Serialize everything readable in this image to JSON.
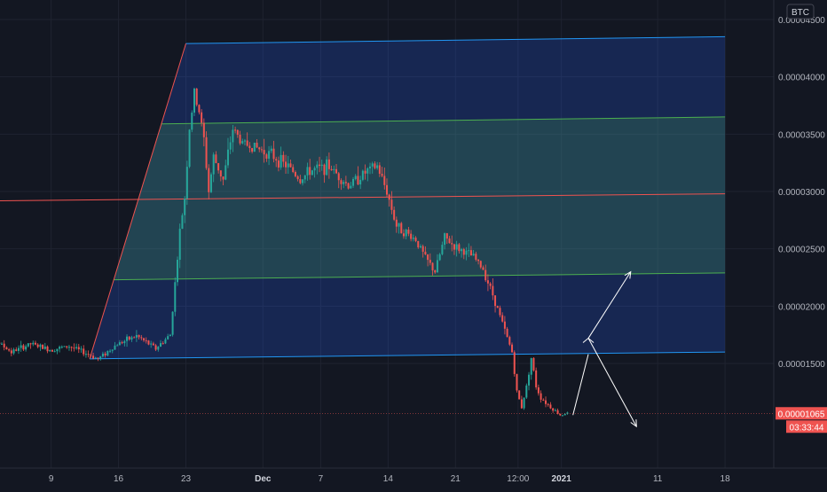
{
  "header": {
    "currency": "BTC"
  },
  "price_tag": {
    "value": "0.00001065",
    "countdown": "03:33:44"
  },
  "colors": {
    "background": "#131722",
    "grid": "#1f2330",
    "text": "#b2b5be",
    "up": "#26a69a",
    "down": "#ef5350",
    "channel_outer": "#2962ff",
    "channel_inner": "#4caf50",
    "channel_mid": "#ef5350",
    "price_label": "#ef5350",
    "arrow": "#ffffff"
  },
  "chart_data": {
    "type": "candlestick",
    "y_axis": {
      "scale": "linear",
      "range": [
        5.5e-06,
        4.45e-05
      ],
      "ticks": [
        "0.00001500",
        "0.00002000",
        "0.00002500",
        "0.00003000",
        "0.00003500",
        "0.00004000",
        "0.00004500"
      ],
      "tick_values": [
        1.5e-05,
        2e-05,
        2.5e-05,
        3e-05,
        3.5e-05,
        4e-05,
        4.5e-05
      ]
    },
    "x_axis": {
      "ticks": [
        "9",
        "16",
        "23",
        "Dec",
        "7",
        "14",
        "21",
        "12:00",
        "2021",
        "11",
        "18"
      ],
      "tick_days": [
        -24,
        -17,
        -10,
        -2,
        4,
        11,
        18,
        24.5,
        29,
        39,
        46
      ],
      "bold": [
        "Dec",
        "2021"
      ]
    },
    "price_path": {
      "description_units": "x = days from Dec 1 2020, y = price in BTC",
      "points": [
        [
          -32,
          1.76e-05
        ],
        [
          -30,
          1.72e-05
        ],
        [
          -28,
          1.6e-05
        ],
        [
          -26,
          1.67e-05
        ],
        [
          -24,
          1.62e-05
        ],
        [
          -22,
          1.65e-05
        ],
        [
          -20,
          1.58e-05
        ],
        [
          -19,
          1.54e-05
        ],
        [
          -17,
          1.67e-05
        ],
        [
          -15,
          1.74e-05
        ],
        [
          -13,
          1.63e-05
        ],
        [
          -11.5,
          1.75e-05
        ],
        [
          -11,
          2.2e-05
        ],
        [
          -10.5,
          2.65e-05
        ],
        [
          -10,
          2.95e-05
        ],
        [
          -9.5,
          3.55e-05
        ],
        [
          -9,
          3.85e-05
        ],
        [
          -8.5,
          3.7e-05
        ],
        [
          -8,
          3.45e-05
        ],
        [
          -7.5,
          3e-05
        ],
        [
          -7,
          3.3e-05
        ],
        [
          -6,
          3.1e-05
        ],
        [
          -5,
          3.55e-05
        ],
        [
          -4,
          3.42e-05
        ],
        [
          -3,
          3.4e-05
        ],
        [
          -1,
          3.32e-05
        ],
        [
          1,
          3.2e-05
        ],
        [
          2,
          3.1e-05
        ],
        [
          3,
          3.18e-05
        ],
        [
          5,
          3.22e-05
        ],
        [
          7,
          3.05e-05
        ],
        [
          9,
          3.18e-05
        ],
        [
          10,
          3.22e-05
        ],
        [
          11,
          3e-05
        ],
        [
          12,
          2.7e-05
        ],
        [
          14,
          2.58e-05
        ],
        [
          15,
          2.42e-05
        ],
        [
          16,
          2.3e-05
        ],
        [
          17,
          2.6e-05
        ],
        [
          18,
          2.52e-05
        ],
        [
          20,
          2.43e-05
        ],
        [
          21,
          2.32e-05
        ],
        [
          22,
          2.1e-05
        ],
        [
          23,
          1.85e-05
        ],
        [
          24,
          1.6e-05
        ],
        [
          24.5,
          1.25e-05
        ],
        [
          25,
          1.12e-05
        ],
        [
          25.5,
          1.3e-05
        ],
        [
          26,
          1.55e-05
        ],
        [
          26.5,
          1.3e-05
        ],
        [
          27,
          1.2e-05
        ],
        [
          28,
          1.12e-05
        ],
        [
          29,
          1.05e-05
        ],
        [
          29.5,
          1.065e-05
        ]
      ]
    },
    "drawings": [
      {
        "type": "parallel_channel",
        "outer_top": [
          [
            -10,
            4.29e-05
          ],
          [
            46,
            4.35e-05
          ]
        ],
        "outer_bottom": [
          [
            -20,
            1.54e-05
          ],
          [
            46,
            1.6e-05
          ]
        ],
        "inner_top": [
          [
            -10,
            3.59e-05
          ],
          [
            46,
            3.65e-05
          ]
        ],
        "inner_bottom": [
          [
            -10,
            2.23e-05
          ],
          [
            46,
            2.29e-05
          ]
        ],
        "mid": [
          [
            -40,
            2.91e-05
          ],
          [
            46,
            2.98e-05
          ]
        ]
      },
      {
        "type": "arrow",
        "from": [
          31.8,
          1.72e-05
        ],
        "to": [
          36.2,
          2.3e-05
        ]
      },
      {
        "type": "arrow",
        "from": [
          31.8,
          1.72e-05
        ],
        "to": [
          36.8,
          9.5e-06
        ]
      },
      {
        "type": "line",
        "points": [
          [
            30.2,
            1.05e-05
          ],
          [
            31.8,
            1.58e-05
          ]
        ]
      }
    ],
    "current_price": 1.065e-05
  }
}
